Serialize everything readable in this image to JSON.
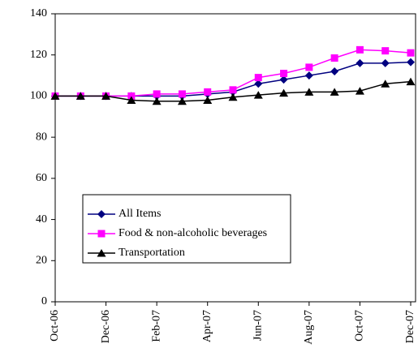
{
  "chart_data": {
    "type": "line",
    "categories": [
      "Oct-06",
      null,
      "Dec-06",
      null,
      "Feb-07",
      null,
      "Apr-07",
      null,
      "Jun-07",
      null,
      "Aug-07",
      null,
      "Oct-07",
      null,
      "Dec-07"
    ],
    "series": [
      {
        "name": "All Items",
        "color": "#000080",
        "marker": "diamond",
        "values": [
          100,
          100,
          100,
          100,
          100,
          100,
          101,
          102,
          106,
          108,
          110,
          112,
          116,
          116,
          116.5
        ]
      },
      {
        "name": "Food & non-alcoholic beverages",
        "color": "#ff00ff",
        "marker": "square",
        "values": [
          100,
          100,
          100,
          100,
          101,
          101,
          102,
          103,
          109,
          111,
          114,
          118.5,
          122.5,
          122,
          121
        ]
      },
      {
        "name": "Transportation",
        "color": "#000000",
        "marker": "triangle",
        "values": [
          100,
          100,
          100,
          98,
          97.5,
          97.5,
          98,
          99.5,
          100.5,
          101.5,
          102,
          102,
          102.5,
          106,
          107
        ]
      }
    ],
    "ylim": [
      0,
      140
    ],
    "yticks": [
      0,
      20,
      40,
      60,
      80,
      100,
      120,
      140
    ],
    "grid": false,
    "legend": "lower left"
  }
}
